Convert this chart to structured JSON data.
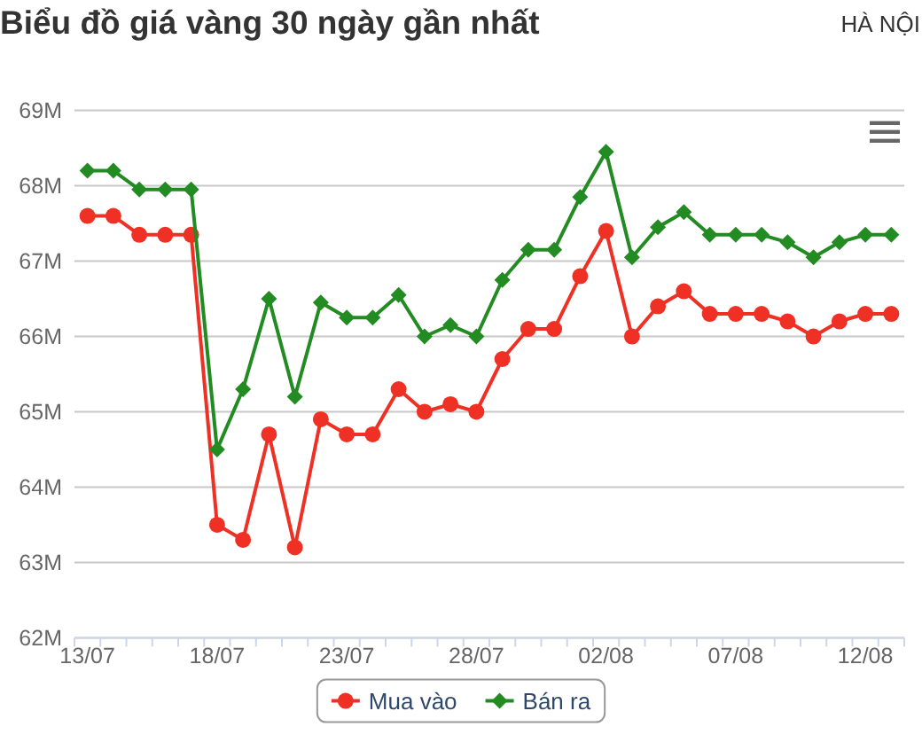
{
  "chart_data": {
    "type": "line",
    "title": "Biểu đồ giá vàng 30 ngày gần nhất",
    "subtitle": "HÀ NỘI",
    "categories": [
      "13/07",
      null,
      null,
      null,
      null,
      "18/07",
      null,
      null,
      null,
      null,
      "23/07",
      null,
      null,
      null,
      null,
      "28/07",
      null,
      null,
      null,
      null,
      "02/08",
      null,
      null,
      null,
      null,
      "07/08",
      null,
      null,
      null,
      null,
      "12/08",
      null
    ],
    "series": [
      {
        "name": "Mua vào",
        "color": "#ee3124",
        "marker": "circle",
        "values": [
          67.6,
          67.6,
          67.35,
          67.35,
          67.35,
          63.5,
          63.3,
          64.7,
          63.2,
          64.9,
          64.7,
          64.7,
          65.3,
          65.0,
          65.1,
          65.0,
          65.7,
          66.1,
          66.1,
          66.8,
          67.4,
          66.0,
          66.4,
          66.6,
          66.3,
          66.3,
          66.3,
          66.2,
          66.0,
          66.2,
          66.3,
          66.3
        ]
      },
      {
        "name": "Bán ra",
        "color": "#228b22",
        "marker": "diamond",
        "values": [
          68.2,
          68.2,
          67.95,
          67.95,
          67.95,
          64.5,
          65.3,
          66.5,
          65.2,
          66.45,
          66.25,
          66.25,
          66.55,
          66.0,
          66.15,
          66.0,
          66.75,
          67.15,
          67.15,
          67.85,
          68.45,
          67.05,
          67.45,
          67.65,
          67.35,
          67.35,
          67.35,
          67.25,
          67.05,
          67.25,
          67.35,
          67.35
        ]
      }
    ],
    "ylim": [
      62,
      69
    ],
    "yticks": [
      {
        "value": 62,
        "label": "62M"
      },
      {
        "value": 63,
        "label": "63M"
      },
      {
        "value": 64,
        "label": "64M"
      },
      {
        "value": 65,
        "label": "65M"
      },
      {
        "value": 66,
        "label": "66M"
      },
      {
        "value": 67,
        "label": "67M"
      },
      {
        "value": 68,
        "label": "68M"
      },
      {
        "value": 69,
        "label": "69M"
      }
    ],
    "grid": "y",
    "legend": "bottom",
    "line_style": "solid"
  }
}
